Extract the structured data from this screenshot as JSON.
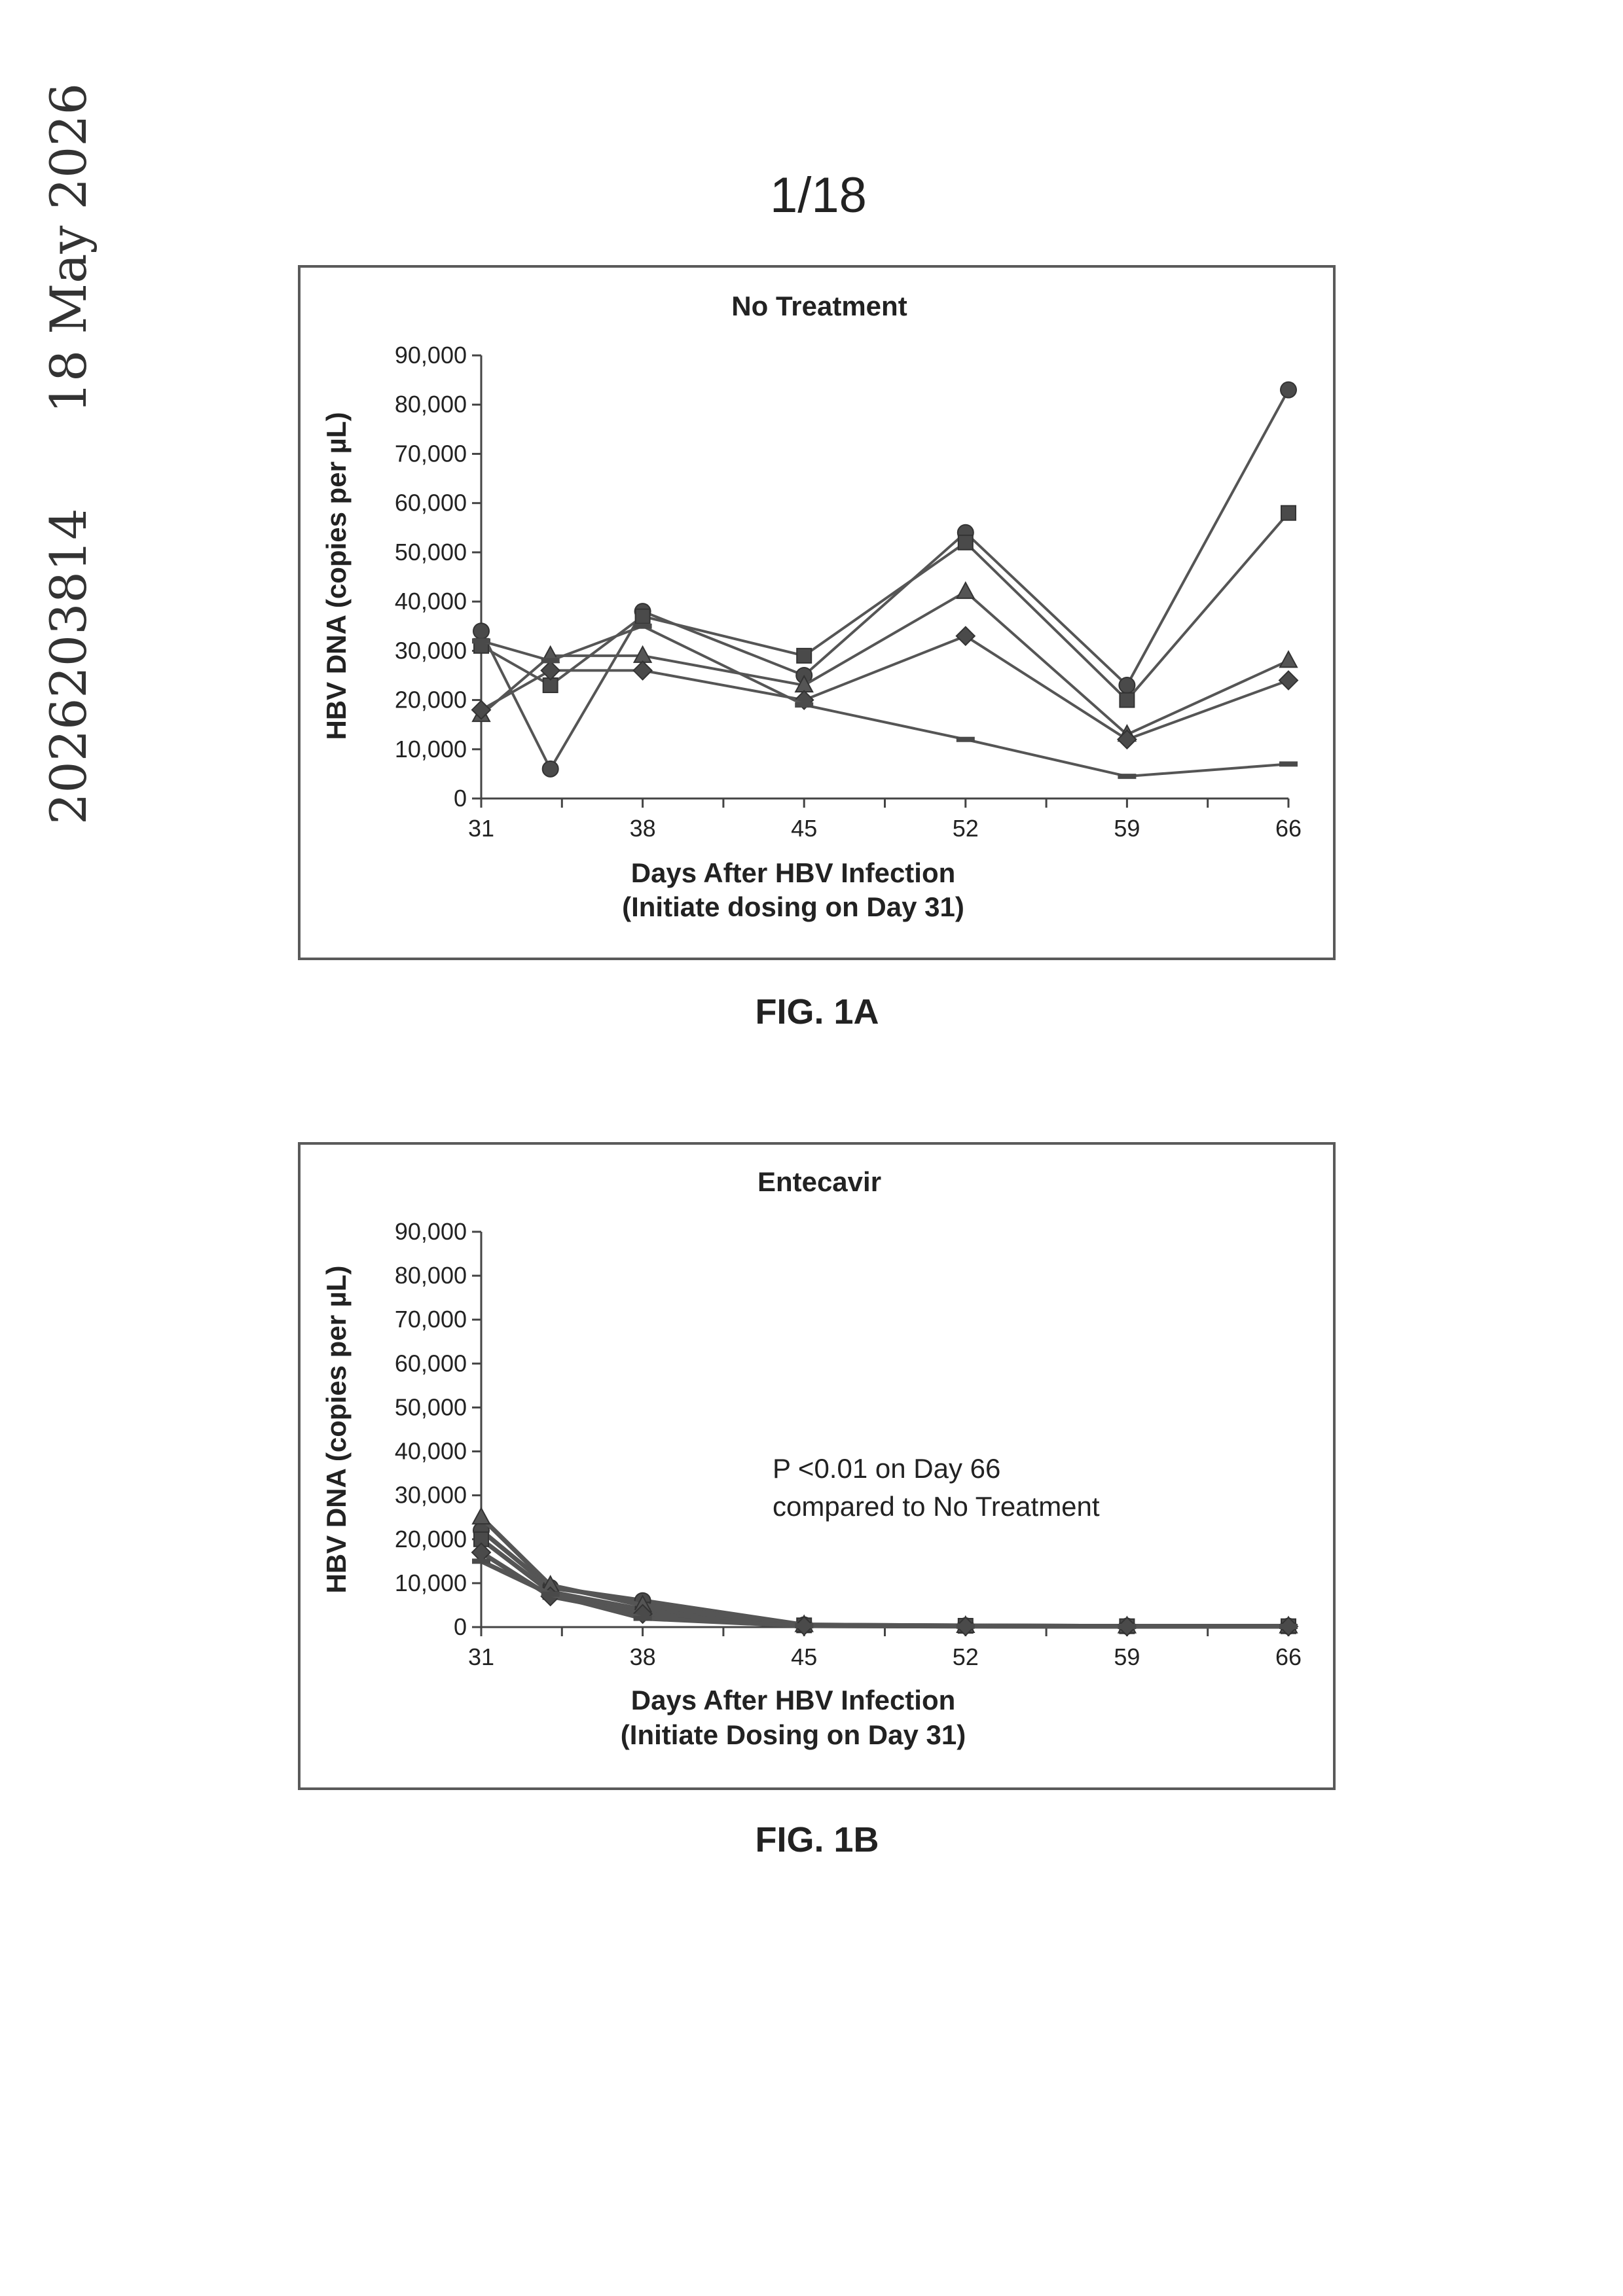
{
  "header": {
    "application_number": "2026203814",
    "date": "18 May 2026",
    "page_number": "1/18"
  },
  "figures": [
    {
      "label": "FIG. 1A"
    },
    {
      "label": "FIG. 1B"
    }
  ],
  "chart_data": [
    {
      "type": "line",
      "title": "No Treatment",
      "xlabel": "Days After HBV Infection",
      "xlabel_line2": "(Initiate dosing on Day 31)",
      "ylabel": "HBV DNA (copies per µL)",
      "x_ticks": [
        31,
        38,
        45,
        52,
        59,
        66
      ],
      "y_ticks": [
        "0",
        "10,000",
        "20,000",
        "30,000",
        "40,000",
        "50,000",
        "60,000",
        "70,000",
        "80,000",
        "90,000"
      ],
      "xlim": [
        31,
        66
      ],
      "ylim": [
        0,
        90000
      ],
      "grid": false,
      "annotation": "",
      "series": [
        {
          "marker": "circle",
          "x": [
            31,
            34,
            38,
            45,
            52,
            59,
            66
          ],
          "y": [
            34000,
            6000,
            38000,
            25000,
            54000,
            23000,
            83000
          ]
        },
        {
          "marker": "square",
          "x": [
            31,
            34,
            38,
            45,
            52,
            59,
            66
          ],
          "y": [
            31000,
            23000,
            37000,
            29000,
            52000,
            20000,
            58000
          ]
        },
        {
          "marker": "triangle",
          "x": [
            31,
            34,
            38,
            45,
            52,
            59,
            66
          ],
          "y": [
            17000,
            29000,
            29000,
            23000,
            42000,
            13000,
            28000
          ]
        },
        {
          "marker": "diamond",
          "x": [
            31,
            34,
            38,
            45,
            52,
            59,
            66
          ],
          "y": [
            18000,
            26000,
            26000,
            20000,
            33000,
            12000,
            24000
          ]
        },
        {
          "marker": "dash",
          "x": [
            31,
            34,
            38,
            45,
            52,
            59,
            66
          ],
          "y": [
            32000,
            28000,
            35000,
            19000,
            12000,
            4500,
            7000
          ]
        }
      ]
    },
    {
      "type": "line",
      "title": "Entecavir",
      "xlabel": "Days After HBV Infection",
      "xlabel_line2": "(Initiate Dosing on Day 31)",
      "ylabel": "HBV DNA (copies per µL)",
      "x_ticks": [
        31,
        38,
        45,
        52,
        59,
        66
      ],
      "y_ticks": [
        "0",
        "10,000",
        "20,000",
        "30,000",
        "40,000",
        "50,000",
        "60,000",
        "70,000",
        "80,000",
        "90,000"
      ],
      "xlim": [
        31,
        66
      ],
      "ylim": [
        0,
        90000
      ],
      "grid": false,
      "annotation": "P <0.01 on Day 66",
      "annotation_line2": "compared to No Treatment",
      "series": [
        {
          "marker": "circle",
          "x": [
            31,
            34,
            38,
            45,
            52,
            59,
            66
          ],
          "y": [
            22000,
            9000,
            6000,
            500,
            300,
            200,
            200
          ]
        },
        {
          "marker": "square",
          "x": [
            31,
            34,
            38,
            45,
            52,
            59,
            66
          ],
          "y": [
            20000,
            8000,
            4000,
            400,
            300,
            200,
            200
          ]
        },
        {
          "marker": "triangle",
          "x": [
            31,
            34,
            38,
            45,
            52,
            59,
            66
          ],
          "y": [
            25000,
            9500,
            5000,
            500,
            300,
            200,
            200
          ]
        },
        {
          "marker": "diamond",
          "x": [
            31,
            34,
            38,
            45,
            52,
            59,
            66
          ],
          "y": [
            17000,
            7000,
            3000,
            300,
            200,
            150,
            150
          ]
        },
        {
          "marker": "dash",
          "x": [
            31,
            34,
            38,
            45,
            52,
            59,
            66
          ],
          "y": [
            15000,
            7500,
            2000,
            300,
            200,
            150,
            150
          ]
        }
      ]
    }
  ]
}
